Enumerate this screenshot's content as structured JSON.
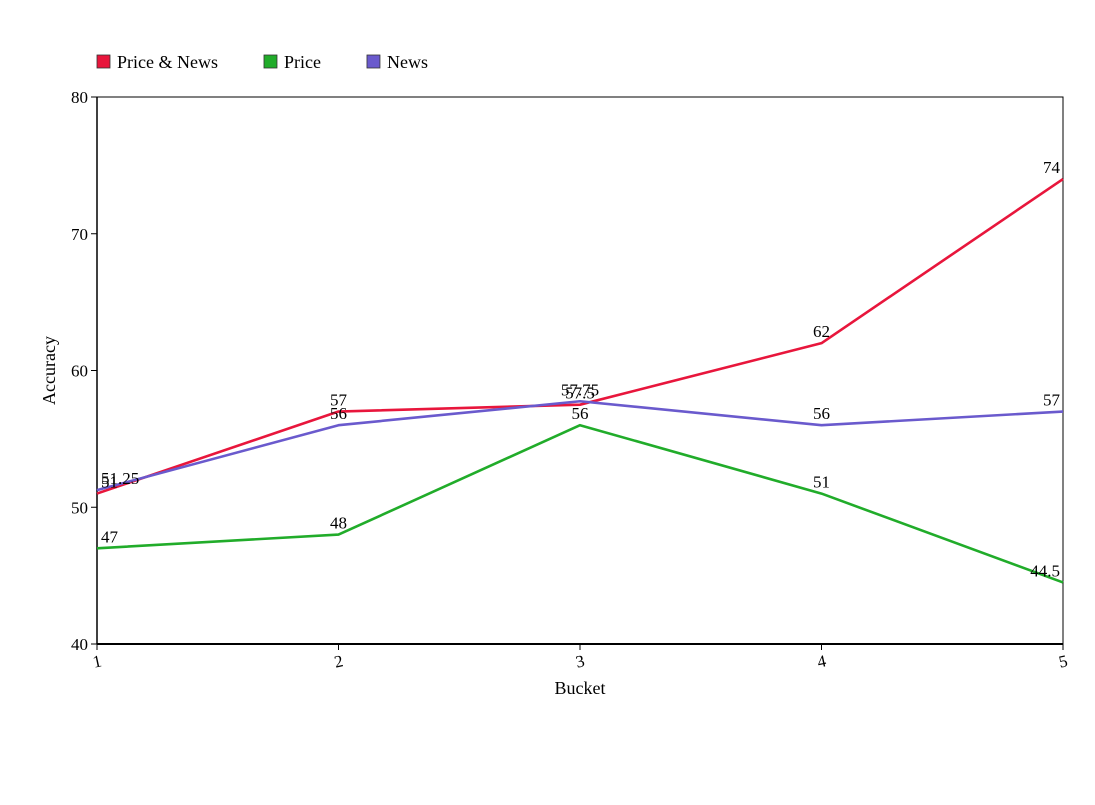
{
  "chart_data": {
    "type": "line",
    "categories": [
      "1",
      "2",
      "3",
      "4",
      "5"
    ],
    "x": [
      1,
      2,
      3,
      4,
      5
    ],
    "series": [
      {
        "name": "Price & News",
        "color": "#e8163c",
        "values": [
          51,
          57,
          57.5,
          62,
          74
        ]
      },
      {
        "name": "Price",
        "color": "#21ac2a",
        "values": [
          47,
          48,
          56,
          51,
          44.5
        ]
      },
      {
        "name": "News",
        "color": "#6a5acd",
        "values": [
          51.25,
          56,
          57.75,
          56,
          57
        ]
      }
    ],
    "xlabel": "Bucket",
    "ylabel": "Accuracy",
    "xlim": [
      1,
      5
    ],
    "ylim": [
      40,
      80
    ],
    "yticks": [
      40,
      50,
      60,
      70,
      80
    ],
    "grid": false,
    "legend_position": "top-left"
  }
}
